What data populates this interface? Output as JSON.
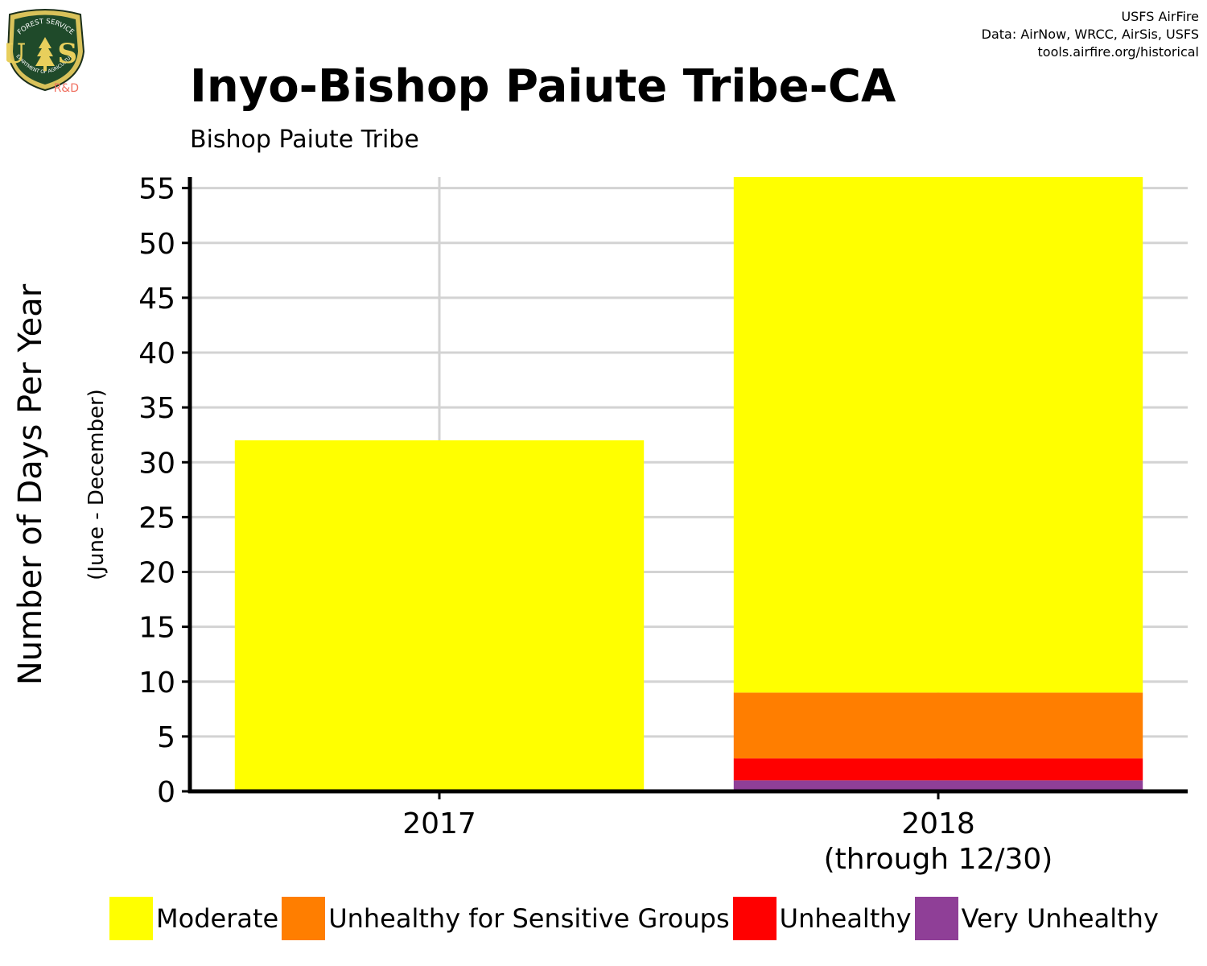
{
  "header": {
    "title": "Inyo-Bishop Paiute Tribe-CA",
    "subtitle": "Bishop Paiute Tribe",
    "credits": [
      "USFS AirFire",
      "Data: AirNow, WRCC, AirSis, USFS",
      "tools.airfire.org/historical"
    ],
    "logo": {
      "icon": "usfs-shield-logo",
      "top_text": "FOREST SERVICE",
      "letters": "U S",
      "bottom_text": "DEPARTMENT OF AGRICULTURE",
      "badge": "R&D"
    }
  },
  "chart_data": {
    "type": "bar",
    "stacked": true,
    "categories": [
      "2017",
      "2018"
    ],
    "category_sublabels": [
      "",
      "(through 12/30)"
    ],
    "series": [
      {
        "name": "Very Unhealthy",
        "color": "#8F3F97",
        "values": [
          0,
          1
        ]
      },
      {
        "name": "Unhealthy",
        "color": "#FF0000",
        "values": [
          0,
          2
        ]
      },
      {
        "name": "Unhealthy for Sensitive Groups",
        "color": "#FF7E00",
        "values": [
          0,
          6
        ]
      },
      {
        "name": "Moderate",
        "color": "#FFFF00",
        "values": [
          32,
          47
        ]
      }
    ],
    "ylabel": "Number of Days Per Year",
    "ylabel_sub": "(June - December)",
    "ylim": [
      0,
      56
    ],
    "yticks": [
      0,
      5,
      10,
      15,
      20,
      25,
      30,
      35,
      40,
      45,
      50,
      55
    ],
    "grid": true,
    "legend_position": "bottom",
    "legend_order": [
      "Moderate",
      "Unhealthy for Sensitive Groups",
      "Unhealthy",
      "Very Unhealthy"
    ]
  }
}
